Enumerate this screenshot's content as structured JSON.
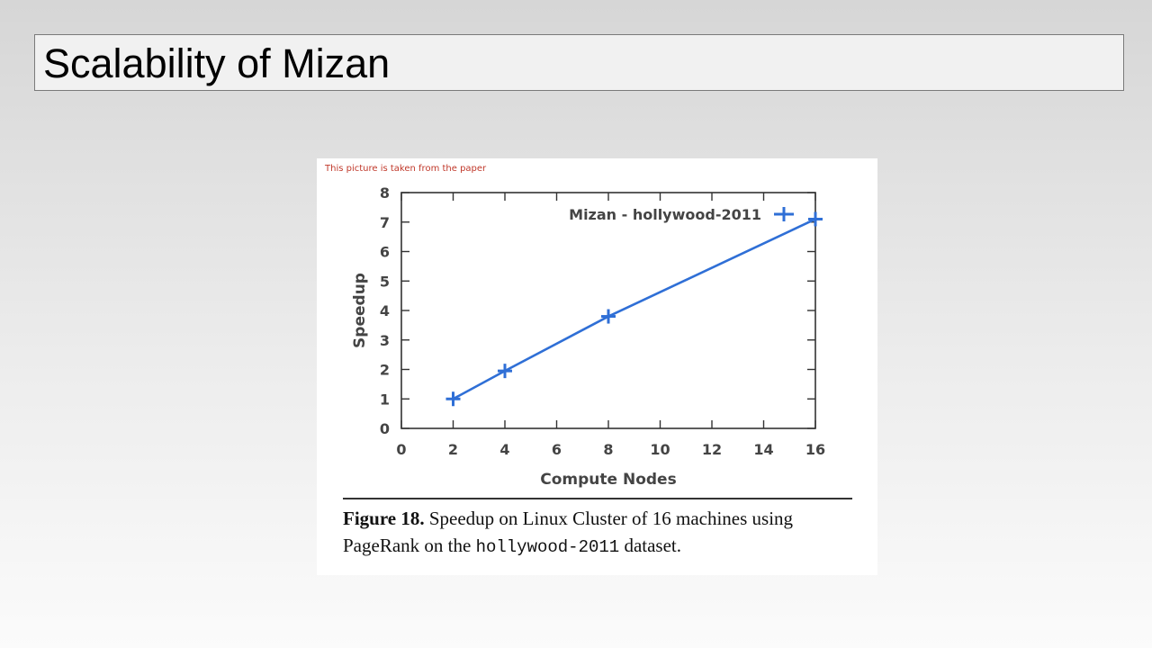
{
  "slide": {
    "title": "Scalability of Mizan",
    "note": "This picture is taken from the paper"
  },
  "caption": {
    "figure_label": "Figure 18.",
    "text_part1": "Speedup on Linux Cluster of 16 machines using PageRank on the",
    "dataset": "hollywood-2011",
    "text_part2": "dataset."
  },
  "chart_data": {
    "type": "line",
    "xlabel": "Compute Nodes",
    "ylabel": "Speedup",
    "xlim": [
      0,
      16
    ],
    "ylim": [
      0,
      8
    ],
    "xticks": [
      0,
      2,
      4,
      6,
      8,
      10,
      12,
      14,
      16
    ],
    "yticks": [
      0,
      1,
      2,
      3,
      4,
      5,
      6,
      7,
      8
    ],
    "legend_position": "top-right",
    "series": [
      {
        "name": "Mizan - hollywood-2011",
        "color": "#2f6fd6",
        "marker": "plus",
        "x": [
          2,
          4,
          8,
          16
        ],
        "y": [
          1.0,
          1.95,
          3.8,
          7.1
        ]
      }
    ]
  }
}
